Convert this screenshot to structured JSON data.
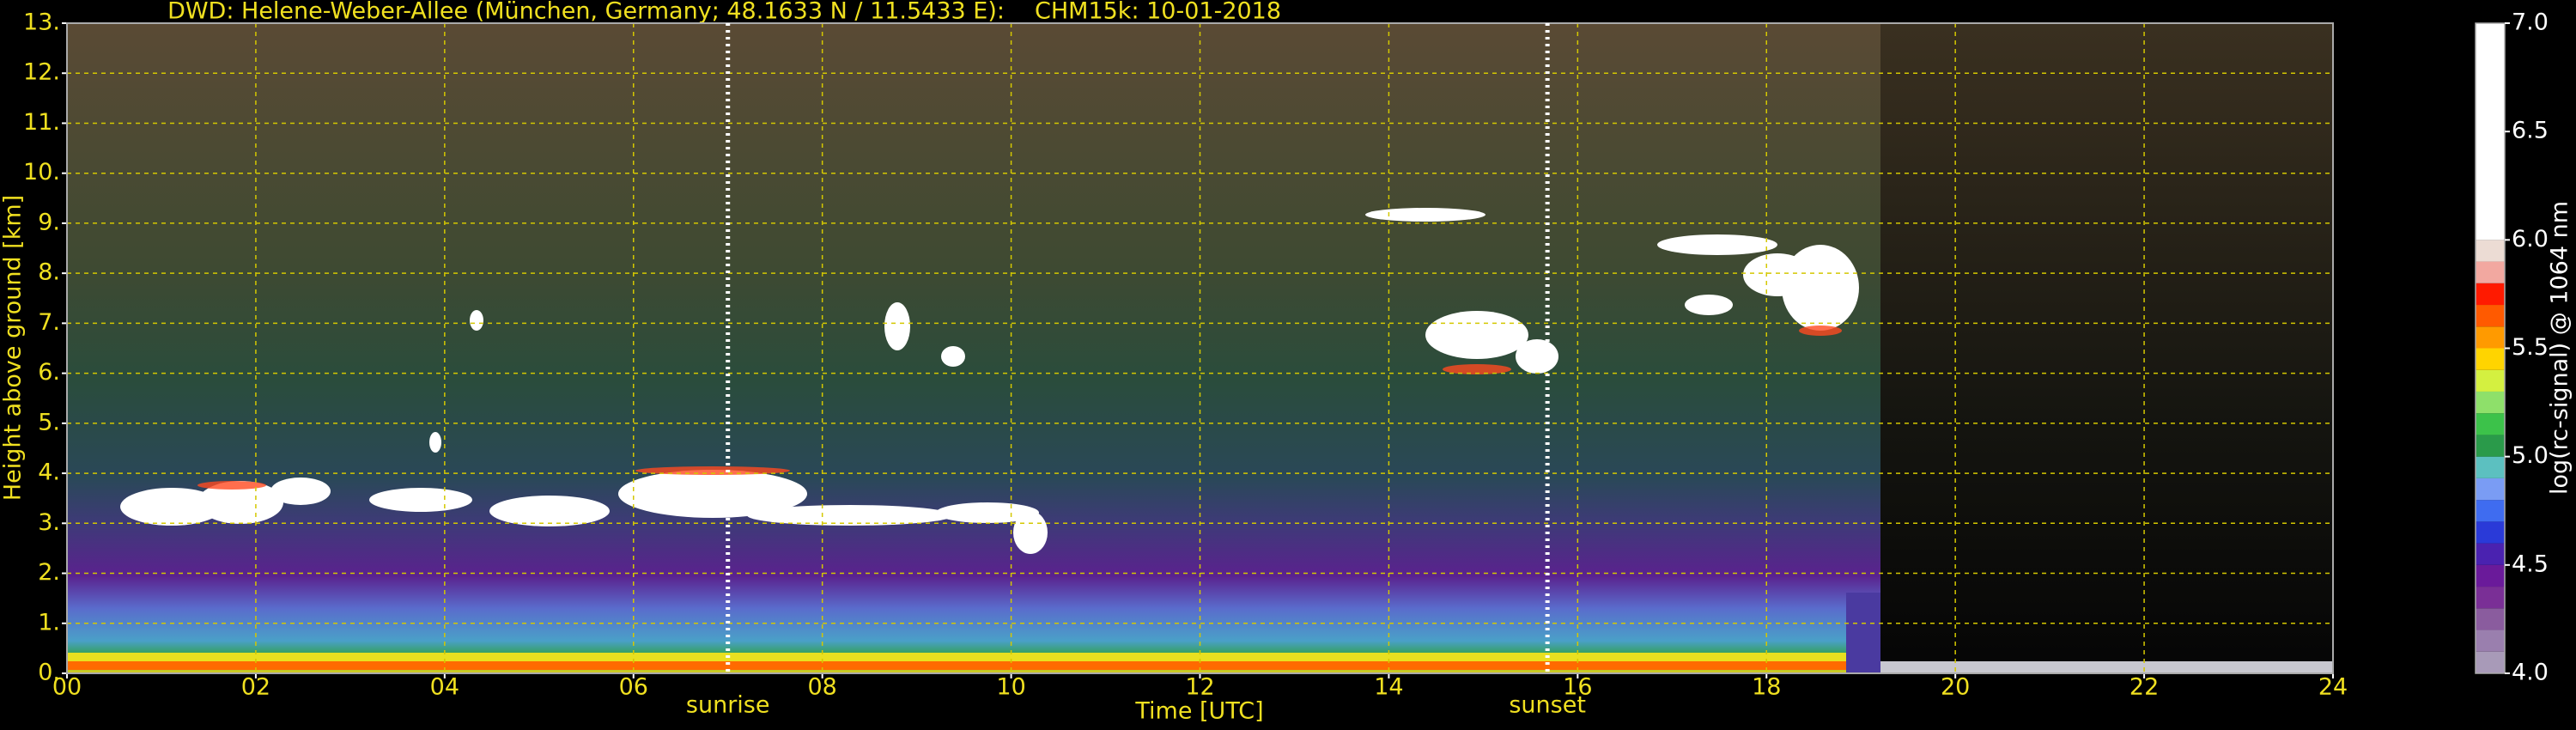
{
  "chart_data": {
    "type": "heatmap",
    "title": "DWD: Helene-Weber-Allee (München, Germany; 48.1633 N / 11.5433 E):",
    "subtitle": "CHM15k: 10-01-2018",
    "xlabel": "Time [UTC]",
    "ylabel": "Height above ground [km]",
    "xlim": [
      0,
      24
    ],
    "xticks": [
      {
        "value": 0,
        "label": "00"
      },
      {
        "value": 2,
        "label": "02"
      },
      {
        "value": 4,
        "label": "04"
      },
      {
        "value": 6,
        "label": "06"
      },
      {
        "value": 8,
        "label": "08"
      },
      10,
      12,
      14,
      16,
      18,
      20,
      22,
      24
    ],
    "ylim": [
      0,
      13
    ],
    "yticks": [
      {
        "value": 0,
        "label": "0."
      },
      {
        "value": 1,
        "label": "1."
      },
      {
        "value": 2,
        "label": "2."
      },
      {
        "value": 3,
        "label": "3."
      },
      {
        "value": 4,
        "label": "4."
      },
      {
        "value": 5,
        "label": "5."
      },
      {
        "value": 6,
        "label": "6."
      },
      {
        "value": 7,
        "label": "7."
      },
      {
        "value": 8,
        "label": "8."
      },
      {
        "value": 9,
        "label": "9."
      },
      {
        "value": 10,
        "label": "10."
      },
      {
        "value": 11,
        "label": "11."
      },
      {
        "value": 12,
        "label": "12."
      },
      {
        "value": 13,
        "label": "13."
      }
    ],
    "grid": true,
    "grid_color": "#d4c800",
    "text_color": "#f0e020",
    "markers": [
      {
        "label": "sunrise",
        "x": 7.0
      },
      {
        "label": "sunset",
        "x": 15.68
      }
    ],
    "colorbar": {
      "label": "log(rc-signal) @ 1064 nm",
      "clim": [
        4.0,
        7.0
      ],
      "ticks": [
        {
          "value": 4.0,
          "label": "4.0"
        },
        4.5,
        {
          "value": 5.0,
          "label": "5.0"
        },
        5.5,
        {
          "value": 6.0,
          "label": "6.0"
        },
        6.5,
        {
          "value": 7.0,
          "label": "7.0"
        }
      ],
      "levels": [
        4.0,
        4.1,
        4.2,
        4.3,
        4.4,
        4.5,
        4.6,
        4.7,
        4.8,
        4.9,
        5.0,
        5.1,
        5.2,
        5.3,
        5.4,
        5.5,
        5.6,
        5.7,
        5.8,
        5.9,
        6.0,
        7.0
      ],
      "colors": [
        "#a89ab8",
        "#9a7fae",
        "#8a5c9e",
        "#7a2f96",
        "#6a1a9a",
        "#4a22b0",
        "#2a3ad8",
        "#3f6cf0",
        "#7a9cf4",
        "#5cc0c0",
        "#2a9a4a",
        "#3cc24a",
        "#8ee06a",
        "#d4f040",
        "#ffd400",
        "#ff9a00",
        "#ff5a00",
        "#ff1a00",
        "#f2a8a0",
        "#ecdcd4",
        "#ffffff"
      ]
    }
  }
}
